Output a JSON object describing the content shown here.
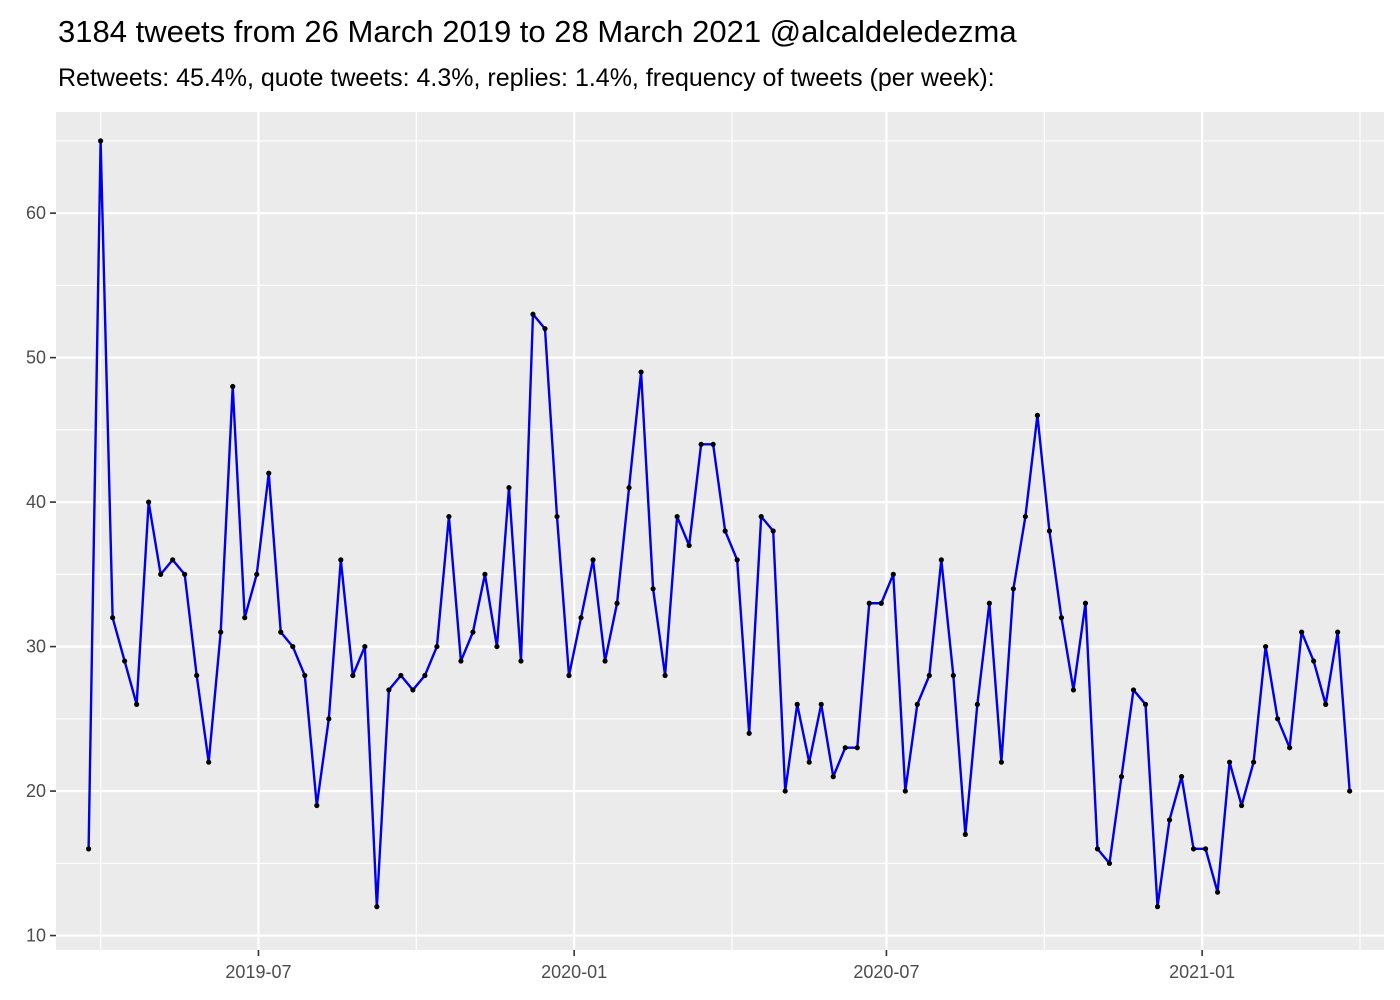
{
  "chart_data": {
    "type": "line",
    "title": "3184 tweets from 26 March 2019 to 28 March 2021 @alcaldeledezma",
    "subtitle": "Retweets: 45.4%, quote tweets: 4.3%, replies: 1.4%, frequency of tweets (per week):",
    "xlabel": "",
    "ylabel": "",
    "start_date": "2019-03-24",
    "interval_days": 7,
    "values": [
      16,
      65,
      32,
      29,
      26,
      40,
      35,
      36,
      35,
      28,
      22,
      31,
      48,
      32,
      35,
      42,
      31,
      30,
      28,
      19,
      25,
      36,
      28,
      30,
      12,
      27,
      28,
      27,
      28,
      30,
      39,
      29,
      31,
      35,
      30,
      41,
      29,
      53,
      52,
      39,
      28,
      32,
      36,
      29,
      33,
      41,
      49,
      34,
      28,
      39,
      37,
      44,
      44,
      38,
      36,
      24,
      39,
      38,
      20,
      26,
      22,
      26,
      21,
      23,
      23,
      33,
      33,
      35,
      20,
      26,
      28,
      36,
      28,
      17,
      26,
      33,
      22,
      34,
      39,
      46,
      38,
      32,
      27,
      33,
      16,
      15,
      21,
      27,
      26,
      12,
      18,
      21,
      16,
      16,
      13,
      22,
      19,
      22,
      30,
      25,
      23,
      31,
      29,
      26,
      31,
      20
    ],
    "x_ticks": [
      "2019-07-01",
      "2020-01-01",
      "2020-07-01",
      "2021-01-01"
    ],
    "x_tick_labels": [
      "2019-07",
      "2020-01",
      "2020-07",
      "2021-01"
    ],
    "y_ticks": [
      10,
      20,
      30,
      40,
      50,
      60
    ],
    "ylim": [
      9,
      67
    ],
    "xlim": [
      "2019-03-05",
      "2021-04-17"
    ],
    "line_color": "#0000ee",
    "point_color": "#000000",
    "panel_color": "#ebebeb",
    "grid": true,
    "legend": "none"
  }
}
